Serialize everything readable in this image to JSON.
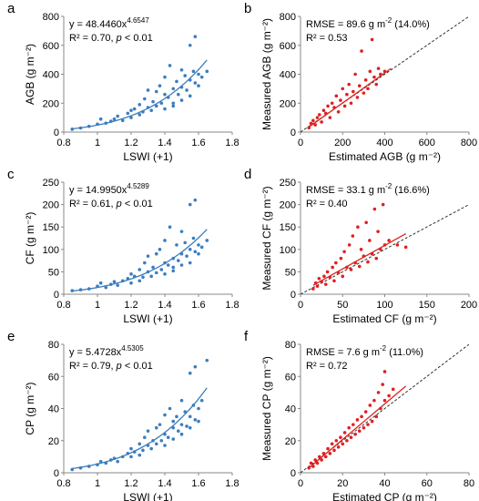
{
  "chart_data": [
    {
      "id": "a",
      "type": "scatter",
      "letter": "a",
      "xlabel": "LSWI (+1)",
      "ylabel": "AGB (g m⁻²)",
      "xlim": [
        0.8,
        1.8
      ],
      "ylim": [
        0,
        800
      ],
      "xticks": [
        0.8,
        1,
        1.2,
        1.4,
        1.6,
        1.8
      ],
      "xtick_labels": [
        "0.8",
        "1",
        "1.2",
        "1.4",
        "1.6",
        "1.8"
      ],
      "yticks": [
        0,
        200,
        400,
        600,
        800
      ],
      "ytick_labels": [
        "0",
        "200",
        "400",
        "600",
        "800"
      ],
      "color": "#3b7dbf",
      "fit": {
        "kind": "power",
        "a": 48.446,
        "b": 4.6547,
        "x_range": [
          0.85,
          1.65
        ]
      },
      "annot": [
        "y = 48.4460x",
        "4.6547",
        "R² = 0.70, ",
        "p",
        " < 0.01"
      ],
      "points": [
        [
          0.85,
          20
        ],
        [
          0.9,
          28
        ],
        [
          0.95,
          40
        ],
        [
          1.0,
          55
        ],
        [
          1.02,
          90
        ],
        [
          1.05,
          62
        ],
        [
          1.08,
          75
        ],
        [
          1.1,
          90
        ],
        [
          1.12,
          110
        ],
        [
          1.15,
          80
        ],
        [
          1.18,
          130
        ],
        [
          1.2,
          100
        ],
        [
          1.2,
          150
        ],
        [
          1.22,
          160
        ],
        [
          1.25,
          120
        ],
        [
          1.25,
          190
        ],
        [
          1.27,
          140
        ],
        [
          1.28,
          230
        ],
        [
          1.3,
          170
        ],
        [
          1.3,
          290
        ],
        [
          1.32,
          150
        ],
        [
          1.33,
          210
        ],
        [
          1.35,
          180
        ],
        [
          1.35,
          280
        ],
        [
          1.37,
          320
        ],
        [
          1.38,
          200
        ],
        [
          1.4,
          260
        ],
        [
          1.4,
          380
        ],
        [
          1.4,
          160
        ],
        [
          1.42,
          240
        ],
        [
          1.43,
          460
        ],
        [
          1.45,
          300
        ],
        [
          1.45,
          200
        ],
        [
          1.45,
          180
        ],
        [
          1.47,
          350
        ],
        [
          1.48,
          260
        ],
        [
          1.5,
          310
        ],
        [
          1.5,
          430
        ],
        [
          1.5,
          220
        ],
        [
          1.52,
          390
        ],
        [
          1.53,
          290
        ],
        [
          1.55,
          360
        ],
        [
          1.55,
          600
        ],
        [
          1.55,
          250
        ],
        [
          1.57,
          420
        ],
        [
          1.58,
          340
        ],
        [
          1.58,
          660
        ],
        [
          1.6,
          400
        ],
        [
          1.6,
          320
        ],
        [
          1.62,
          380
        ],
        [
          1.65,
          420
        ]
      ]
    },
    {
      "id": "b",
      "type": "scatter",
      "letter": "b",
      "xlabel": "Estimated AGB  (g m⁻²)",
      "ylabel": "Measured AGB (g m⁻²)",
      "xlim": [
        0,
        800
      ],
      "ylim": [
        0,
        800
      ],
      "xticks": [
        0,
        200,
        400,
        600,
        800
      ],
      "xtick_labels": [
        "0",
        "200",
        "400",
        "600",
        "800"
      ],
      "yticks": [
        0,
        200,
        400,
        600,
        800
      ],
      "ytick_labels": [
        "0",
        "200",
        "400",
        "600",
        "800"
      ],
      "color": "#e02020",
      "fit": {
        "kind": "linear",
        "x_range": [
          40,
          430
        ],
        "y_range": [
          35,
          440
        ]
      },
      "one_to_one": true,
      "annot": [
        "RMSE = 89.6 g m",
        "-2",
        " (14.0%)",
        "R² = 0.53"
      ],
      "points": [
        [
          40,
          30
        ],
        [
          50,
          60
        ],
        [
          60,
          80
        ],
        [
          70,
          50
        ],
        [
          80,
          100
        ],
        [
          90,
          120
        ],
        [
          100,
          70
        ],
        [
          110,
          150
        ],
        [
          120,
          130
        ],
        [
          130,
          180
        ],
        [
          140,
          100
        ],
        [
          150,
          200
        ],
        [
          160,
          170
        ],
        [
          170,
          250
        ],
        [
          180,
          140
        ],
        [
          190,
          220
        ],
        [
          200,
          300
        ],
        [
          210,
          180
        ],
        [
          220,
          260
        ],
        [
          230,
          330
        ],
        [
          240,
          200
        ],
        [
          250,
          280
        ],
        [
          260,
          400
        ],
        [
          270,
          240
        ],
        [
          280,
          320
        ],
        [
          290,
          560
        ],
        [
          300,
          270
        ],
        [
          310,
          360
        ],
        [
          320,
          300
        ],
        [
          330,
          420
        ],
        [
          340,
          640
        ],
        [
          350,
          380
        ],
        [
          360,
          330
        ],
        [
          370,
          440
        ],
        [
          380,
          400
        ],
        [
          400,
          420
        ]
      ]
    },
    {
      "id": "c",
      "type": "scatter",
      "letter": "c",
      "xlabel": "LSWI (+1)",
      "ylabel": "CF (g m⁻²)",
      "xlim": [
        0.8,
        1.8
      ],
      "ylim": [
        0,
        250
      ],
      "xticks": [
        0.8,
        1,
        1.2,
        1.4,
        1.6,
        1.8
      ],
      "xtick_labels": [
        "0.8",
        "1",
        "1.2",
        "1.4",
        "1.6",
        "1.8"
      ],
      "yticks": [
        0,
        50,
        100,
        150,
        200,
        250
      ],
      "ytick_labels": [
        "0",
        "50",
        "100",
        "150",
        "200",
        "250"
      ],
      "color": "#3b7dbf",
      "fit": {
        "kind": "power",
        "a": 14.995,
        "b": 4.5289,
        "x_range": [
          0.85,
          1.65
        ]
      },
      "annot": [
        "y = 14.9950x",
        "4.5289",
        "R² = 0.61, ",
        "p",
        " < 0.01"
      ],
      "points": [
        [
          0.85,
          8
        ],
        [
          0.9,
          10
        ],
        [
          0.95,
          12
        ],
        [
          1.0,
          18
        ],
        [
          1.02,
          25
        ],
        [
          1.05,
          15
        ],
        [
          1.08,
          22
        ],
        [
          1.1,
          28
        ],
        [
          1.12,
          20
        ],
        [
          1.15,
          30
        ],
        [
          1.18,
          35
        ],
        [
          1.2,
          25
        ],
        [
          1.2,
          45
        ],
        [
          1.22,
          40
        ],
        [
          1.25,
          30
        ],
        [
          1.25,
          55
        ],
        [
          1.27,
          38
        ],
        [
          1.28,
          70
        ],
        [
          1.3,
          50
        ],
        [
          1.3,
          85
        ],
        [
          1.32,
          40
        ],
        [
          1.33,
          60
        ],
        [
          1.35,
          48
        ],
        [
          1.35,
          90
        ],
        [
          1.37,
          100
        ],
        [
          1.38,
          55
        ],
        [
          1.4,
          70
        ],
        [
          1.4,
          120
        ],
        [
          1.4,
          45
        ],
        [
          1.42,
          65
        ],
        [
          1.43,
          150
        ],
        [
          1.45,
          80
        ],
        [
          1.45,
          60
        ],
        [
          1.45,
          52
        ],
        [
          1.47,
          110
        ],
        [
          1.48,
          75
        ],
        [
          1.5,
          90
        ],
        [
          1.5,
          140
        ],
        [
          1.5,
          65
        ],
        [
          1.52,
          115
        ],
        [
          1.53,
          85
        ],
        [
          1.55,
          100
        ],
        [
          1.55,
          200
        ],
        [
          1.55,
          70
        ],
        [
          1.57,
          125
        ],
        [
          1.58,
          95
        ],
        [
          1.58,
          210
        ],
        [
          1.6,
          110
        ],
        [
          1.6,
          90
        ],
        [
          1.62,
          105
        ],
        [
          1.65,
          120
        ]
      ]
    },
    {
      "id": "d",
      "type": "scatter",
      "letter": "d",
      "xlabel": "Estimated CF  (g m⁻²)",
      "ylabel": "Measured CF (g m⁻²)",
      "xlim": [
        0,
        200
      ],
      "ylim": [
        0,
        250
      ],
      "xticks": [
        0,
        50,
        100,
        150,
        200
      ],
      "xtick_labels": [
        "0",
        "50",
        "100",
        "150",
        "200"
      ],
      "yticks": [
        0,
        50,
        100,
        150,
        200,
        250
      ],
      "ytick_labels": [
        "0",
        "50",
        "100",
        "150",
        "200",
        "250"
      ],
      "color": "#e02020",
      "fit": {
        "kind": "linear",
        "x_range": [
          15,
          125
        ],
        "y_range": [
          20,
          135
        ]
      },
      "one_to_one": true,
      "annot": [
        "RMSE = 33.1 g m",
        "-2",
        " (16.6%)",
        "R² = 0.40"
      ],
      "points": [
        [
          15,
          12
        ],
        [
          18,
          25
        ],
        [
          20,
          18
        ],
        [
          22,
          35
        ],
        [
          25,
          28
        ],
        [
          28,
          40
        ],
        [
          30,
          22
        ],
        [
          32,
          50
        ],
        [
          35,
          38
        ],
        [
          38,
          60
        ],
        [
          40,
          30
        ],
        [
          42,
          70
        ],
        [
          45,
          48
        ],
        [
          48,
          80
        ],
        [
          50,
          40
        ],
        [
          52,
          95
        ],
        [
          55,
          60
        ],
        [
          58,
          110
        ],
        [
          60,
          55
        ],
        [
          62,
          130
        ],
        [
          65,
          70
        ],
        [
          68,
          150
        ],
        [
          70,
          62
        ],
        [
          72,
          100
        ],
        [
          75,
          85
        ],
        [
          78,
          160
        ],
        [
          80,
          72
        ],
        [
          82,
          120
        ],
        [
          85,
          90
        ],
        [
          88,
          190
        ],
        [
          90,
          80
        ],
        [
          92,
          140
        ],
        [
          95,
          100
        ],
        [
          98,
          200
        ],
        [
          100,
          110
        ],
        [
          105,
          120
        ],
        [
          115,
          110
        ],
        [
          125,
          105
        ]
      ]
    },
    {
      "id": "e",
      "type": "scatter",
      "letter": "e",
      "xlabel": "LSWI (+1)",
      "ylabel": "CP (g m⁻²)",
      "xlim": [
        0.8,
        1.8
      ],
      "ylim": [
        0,
        80
      ],
      "xticks": [
        0.8,
        1,
        1.2,
        1.4,
        1.6,
        1.8
      ],
      "xtick_labels": [
        "0.8",
        "1",
        "1.2",
        "1.4",
        "1.6",
        "1.8"
      ],
      "yticks": [
        0,
        20,
        40,
        60,
        80
      ],
      "ytick_labels": [
        "0",
        "20",
        "40",
        "60",
        "80"
      ],
      "color": "#3b7dbf",
      "fit": {
        "kind": "power",
        "a": 5.4728,
        "b": 4.5305,
        "x_range": [
          0.85,
          1.65
        ]
      },
      "annot": [
        "y = 5.4728x",
        "4.5305",
        "R² = 0.79, ",
        "p",
        " < 0.01"
      ],
      "points": [
        [
          0.85,
          2
        ],
        [
          0.9,
          3
        ],
        [
          0.95,
          4
        ],
        [
          1.0,
          5
        ],
        [
          1.02,
          7
        ],
        [
          1.05,
          6
        ],
        [
          1.08,
          8
        ],
        [
          1.1,
          9
        ],
        [
          1.12,
          7
        ],
        [
          1.15,
          10
        ],
        [
          1.18,
          12
        ],
        [
          1.2,
          10
        ],
        [
          1.2,
          15
        ],
        [
          1.22,
          13
        ],
        [
          1.25,
          11
        ],
        [
          1.25,
          18
        ],
        [
          1.27,
          14
        ],
        [
          1.28,
          22
        ],
        [
          1.3,
          17
        ],
        [
          1.3,
          26
        ],
        [
          1.32,
          15
        ],
        [
          1.33,
          20
        ],
        [
          1.35,
          18
        ],
        [
          1.35,
          28
        ],
        [
          1.37,
          30
        ],
        [
          1.38,
          20
        ],
        [
          1.4,
          24
        ],
        [
          1.4,
          36
        ],
        [
          1.4,
          17
        ],
        [
          1.42,
          22
        ],
        [
          1.43,
          40
        ],
        [
          1.45,
          28
        ],
        [
          1.45,
          21
        ],
        [
          1.45,
          32
        ],
        [
          1.47,
          35
        ],
        [
          1.48,
          26
        ],
        [
          1.5,
          30
        ],
        [
          1.5,
          45
        ],
        [
          1.5,
          24
        ],
        [
          1.52,
          38
        ],
        [
          1.53,
          29
        ],
        [
          1.55,
          35
        ],
        [
          1.55,
          62
        ],
        [
          1.55,
          28
        ],
        [
          1.57,
          42
        ],
        [
          1.58,
          33
        ],
        [
          1.58,
          66
        ],
        [
          1.6,
          40
        ],
        [
          1.6,
          32
        ],
        [
          1.62,
          45
        ],
        [
          1.65,
          70
        ]
      ]
    },
    {
      "id": "f",
      "type": "scatter",
      "letter": "f",
      "xlabel": "Estimated CP  (g m⁻²)",
      "ylabel": "Measured CP (g m⁻²)",
      "xlim": [
        0,
        80
      ],
      "ylim": [
        0,
        80
      ],
      "xticks": [
        0,
        20,
        40,
        60,
        80
      ],
      "xtick_labels": [
        "0",
        "20",
        "40",
        "60",
        "80"
      ],
      "yticks": [
        0,
        20,
        40,
        60,
        80
      ],
      "ytick_labels": [
        "0",
        "20",
        "40",
        "60",
        "80"
      ],
      "color": "#e02020",
      "fit": {
        "kind": "linear",
        "x_range": [
          4,
          50
        ],
        "y_range": [
          3,
          54
        ]
      },
      "one_to_one": true,
      "annot": [
        "RMSE = 7.6 g m",
        "-2",
        " (11.0%)",
        "R² = 0.72"
      ],
      "points": [
        [
          4,
          3
        ],
        [
          5,
          6
        ],
        [
          6,
          4
        ],
        [
          7,
          8
        ],
        [
          8,
          6
        ],
        [
          9,
          10
        ],
        [
          10,
          8
        ],
        [
          11,
          12
        ],
        [
          12,
          10
        ],
        [
          13,
          15
        ],
        [
          14,
          12
        ],
        [
          15,
          18
        ],
        [
          16,
          14
        ],
        [
          17,
          20
        ],
        [
          18,
          16
        ],
        [
          19,
          22
        ],
        [
          20,
          18
        ],
        [
          21,
          25
        ],
        [
          22,
          20
        ],
        [
          23,
          28
        ],
        [
          24,
          22
        ],
        [
          25,
          30
        ],
        [
          26,
          24
        ],
        [
          27,
          33
        ],
        [
          28,
          26
        ],
        [
          29,
          35
        ],
        [
          30,
          28
        ],
        [
          31,
          38
        ],
        [
          32,
          30
        ],
        [
          33,
          42
        ],
        [
          34,
          32
        ],
        [
          35,
          45
        ],
        [
          36,
          35
        ],
        [
          37,
          50
        ],
        [
          38,
          40
        ],
        [
          39,
          55
        ],
        [
          40,
          63
        ],
        [
          40,
          45
        ],
        [
          42,
          48
        ],
        [
          44,
          52
        ]
      ]
    }
  ]
}
